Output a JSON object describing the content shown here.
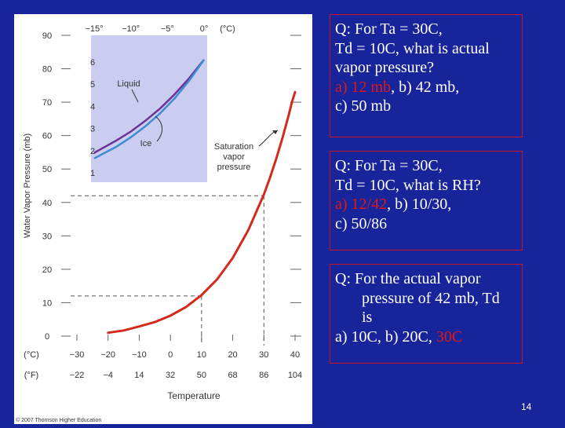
{
  "chart_data": {
    "type": "line",
    "ylabel": "Water Vapor Pressure (mb)",
    "xlabel": "Temperature",
    "x_units_c": "(°C)",
    "x_units_f": "(°F)",
    "x_ticks_c": [
      "−30",
      "−20",
      "−10",
      "0",
      "10",
      "20",
      "30",
      "40"
    ],
    "x_ticks_f": [
      "−22",
      "−4",
      "14",
      "32",
      "50",
      "68",
      "86",
      "104"
    ],
    "y_ticks": [
      "0",
      "10",
      "20",
      "30",
      "40",
      "50",
      "60",
      "70",
      "80",
      "90"
    ],
    "xlim": [
      -30,
      40
    ],
    "ylim": [
      0,
      90
    ],
    "series": [
      {
        "name": "Saturation vapor pressure",
        "color": "#d42a1c",
        "points": [
          [
            -20,
            1.0
          ],
          [
            -15,
            1.7
          ],
          [
            -10,
            2.9
          ],
          [
            -5,
            4.2
          ],
          [
            0,
            6.1
          ],
          [
            5,
            8.7
          ],
          [
            10,
            12.3
          ],
          [
            15,
            17.0
          ],
          [
            20,
            23.4
          ],
          [
            25,
            31.7
          ],
          [
            30,
            42.4
          ],
          [
            32,
            47.5
          ],
          [
            34,
            53.2
          ],
          [
            36,
            59.4
          ],
          [
            38,
            66.3
          ],
          [
            39,
            70.0
          ],
          [
            40,
            73.0
          ]
        ]
      }
    ],
    "guides": [
      {
        "x": 10,
        "y": 12
      },
      {
        "x": 30,
        "y": 42
      }
    ],
    "annotation": "Saturation vapor pressure",
    "inset": {
      "x_units": "(°C)",
      "x_ticks": [
        "−15°",
        "−10°",
        "−5°",
        "0°"
      ],
      "xlim": [
        -15,
        0
      ],
      "y_ticks": [
        "1",
        "2",
        "3",
        "4",
        "5",
        "6"
      ],
      "ylim": [
        1,
        6
      ],
      "background": "#cbcdf0",
      "series": [
        {
          "name": "Liquid",
          "color": "#6a3296",
          "points": [
            [
              -15,
              1.9
            ],
            [
              -12,
              2.45
            ],
            [
              -10,
              2.86
            ],
            [
              -8,
              3.35
            ],
            [
              -6,
              3.9
            ],
            [
              -4,
              4.55
            ],
            [
              -2,
              5.28
            ],
            [
              0,
              6.11
            ]
          ]
        },
        {
          "name": "Ice",
          "color": "#3c8cd2",
          "points": [
            [
              -15,
              1.65
            ],
            [
              -12,
              2.17
            ],
            [
              -10,
              2.6
            ],
            [
              -8,
              3.1
            ],
            [
              -6,
              3.68
            ],
            [
              -4,
              4.37
            ],
            [
              -2,
              5.17
            ],
            [
              0,
              6.11
            ]
          ]
        }
      ]
    },
    "copyright": "© 2007 Thomson Higher Education"
  },
  "questions": {
    "q1": {
      "line1": "Q: For Ta = 30C,",
      "line2": "Td = 10C, what is actual",
      "line3": "vapor pressure?",
      "answer_correct": "a) 12 mb",
      "answer_rest": ", b) 42 mb,",
      "line5": "c) 50 mb"
    },
    "q2": {
      "line1": "Q: For Ta = 30C,",
      "line2": "Td = 10C, what is RH?",
      "answer_correct": "a) 12/42",
      "answer_rest": ", b) 10/30,",
      "line4": "c) 50/86"
    },
    "q3": {
      "line1": "Q: For the actual vapor",
      "line2": "pressure of 42 mb,  Td",
      "line3": "is",
      "answer_plain": "a) 10C, b) 20C, ",
      "answer_correct": "30C"
    }
  },
  "page_number": "14"
}
